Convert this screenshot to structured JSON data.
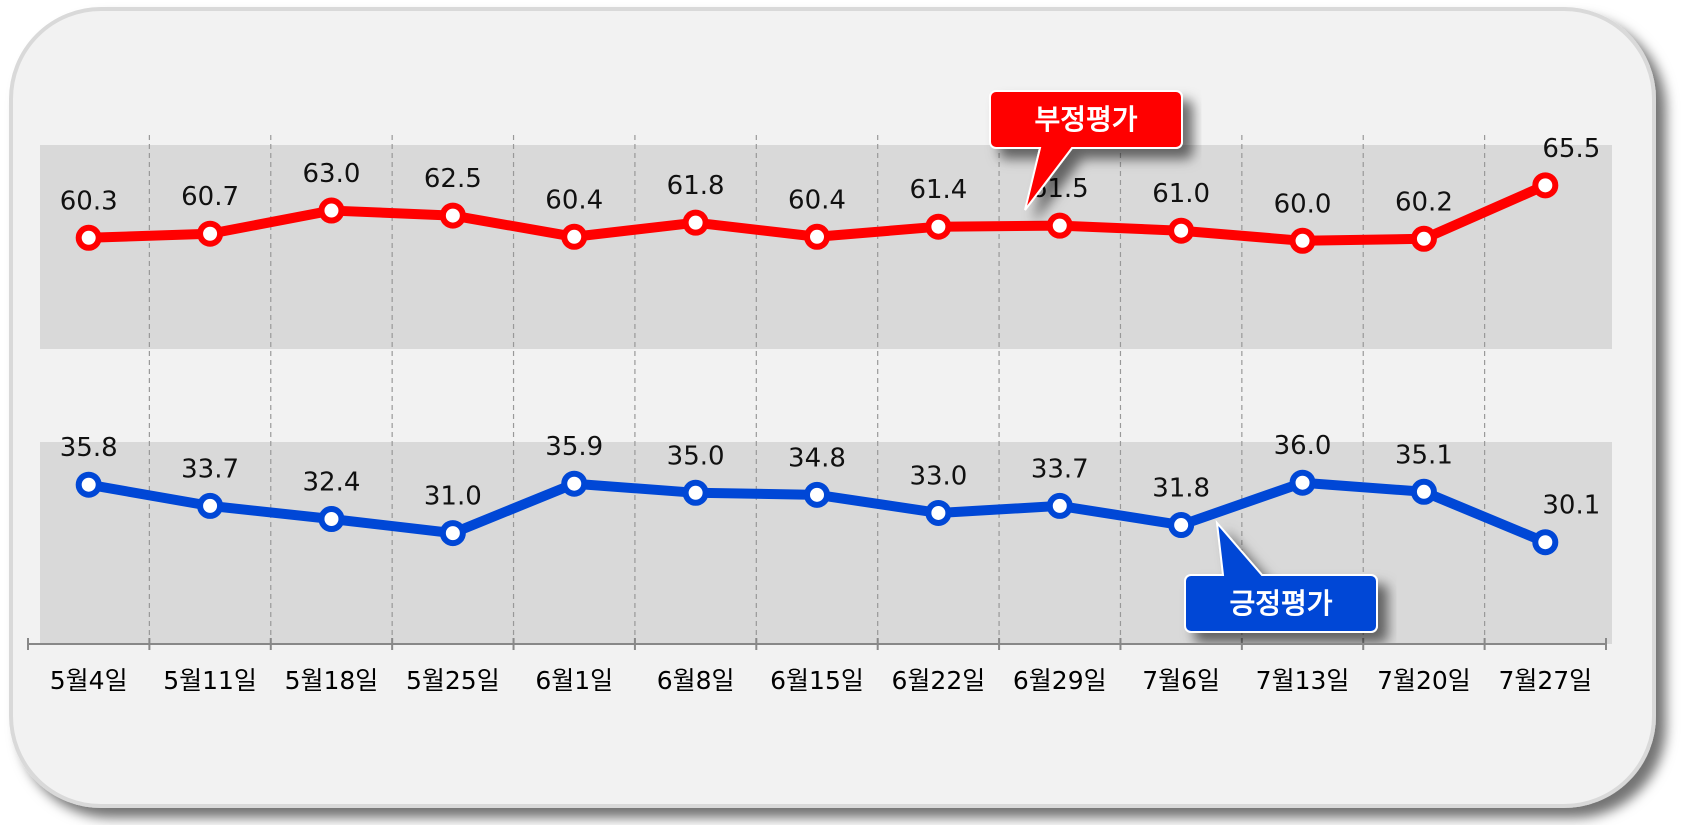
{
  "chart_data": {
    "type": "line",
    "categories": [
      "5월4일",
      "5월11일",
      "5월18일",
      "5월25일",
      "6월1일",
      "6월8일",
      "6월15일",
      "6월22일",
      "6월29일",
      "7월6일",
      "7월13일",
      "7월20일",
      "7월27일"
    ],
    "series": [
      {
        "name": "부정평가",
        "color": "#ff0000",
        "values": [
          60.3,
          60.7,
          63.0,
          62.5,
          60.4,
          61.8,
          60.4,
          61.4,
          61.5,
          61.0,
          60.0,
          60.2,
          65.5
        ],
        "value_labels": [
          "60.3",
          "60.7",
          "63.0",
          "62.5",
          "60.4",
          "61.8",
          "60.4",
          "61.4",
          "61.5",
          "61.0",
          "60.0",
          "60.2",
          "65.5"
        ]
      },
      {
        "name": "긍정평가",
        "color": "#0047d6",
        "values": [
          35.8,
          33.7,
          32.4,
          31.0,
          35.9,
          35.0,
          34.8,
          33.0,
          33.7,
          31.8,
          36.0,
          35.1,
          30.1
        ],
        "value_labels": [
          "35.8",
          "33.7",
          "32.4",
          "31.0",
          "35.9",
          "35.0",
          "34.8",
          "33.0",
          "33.7",
          "31.8",
          "36.0",
          "35.1",
          "30.1"
        ]
      }
    ],
    "ylim": [
      20,
      70
    ]
  }
}
